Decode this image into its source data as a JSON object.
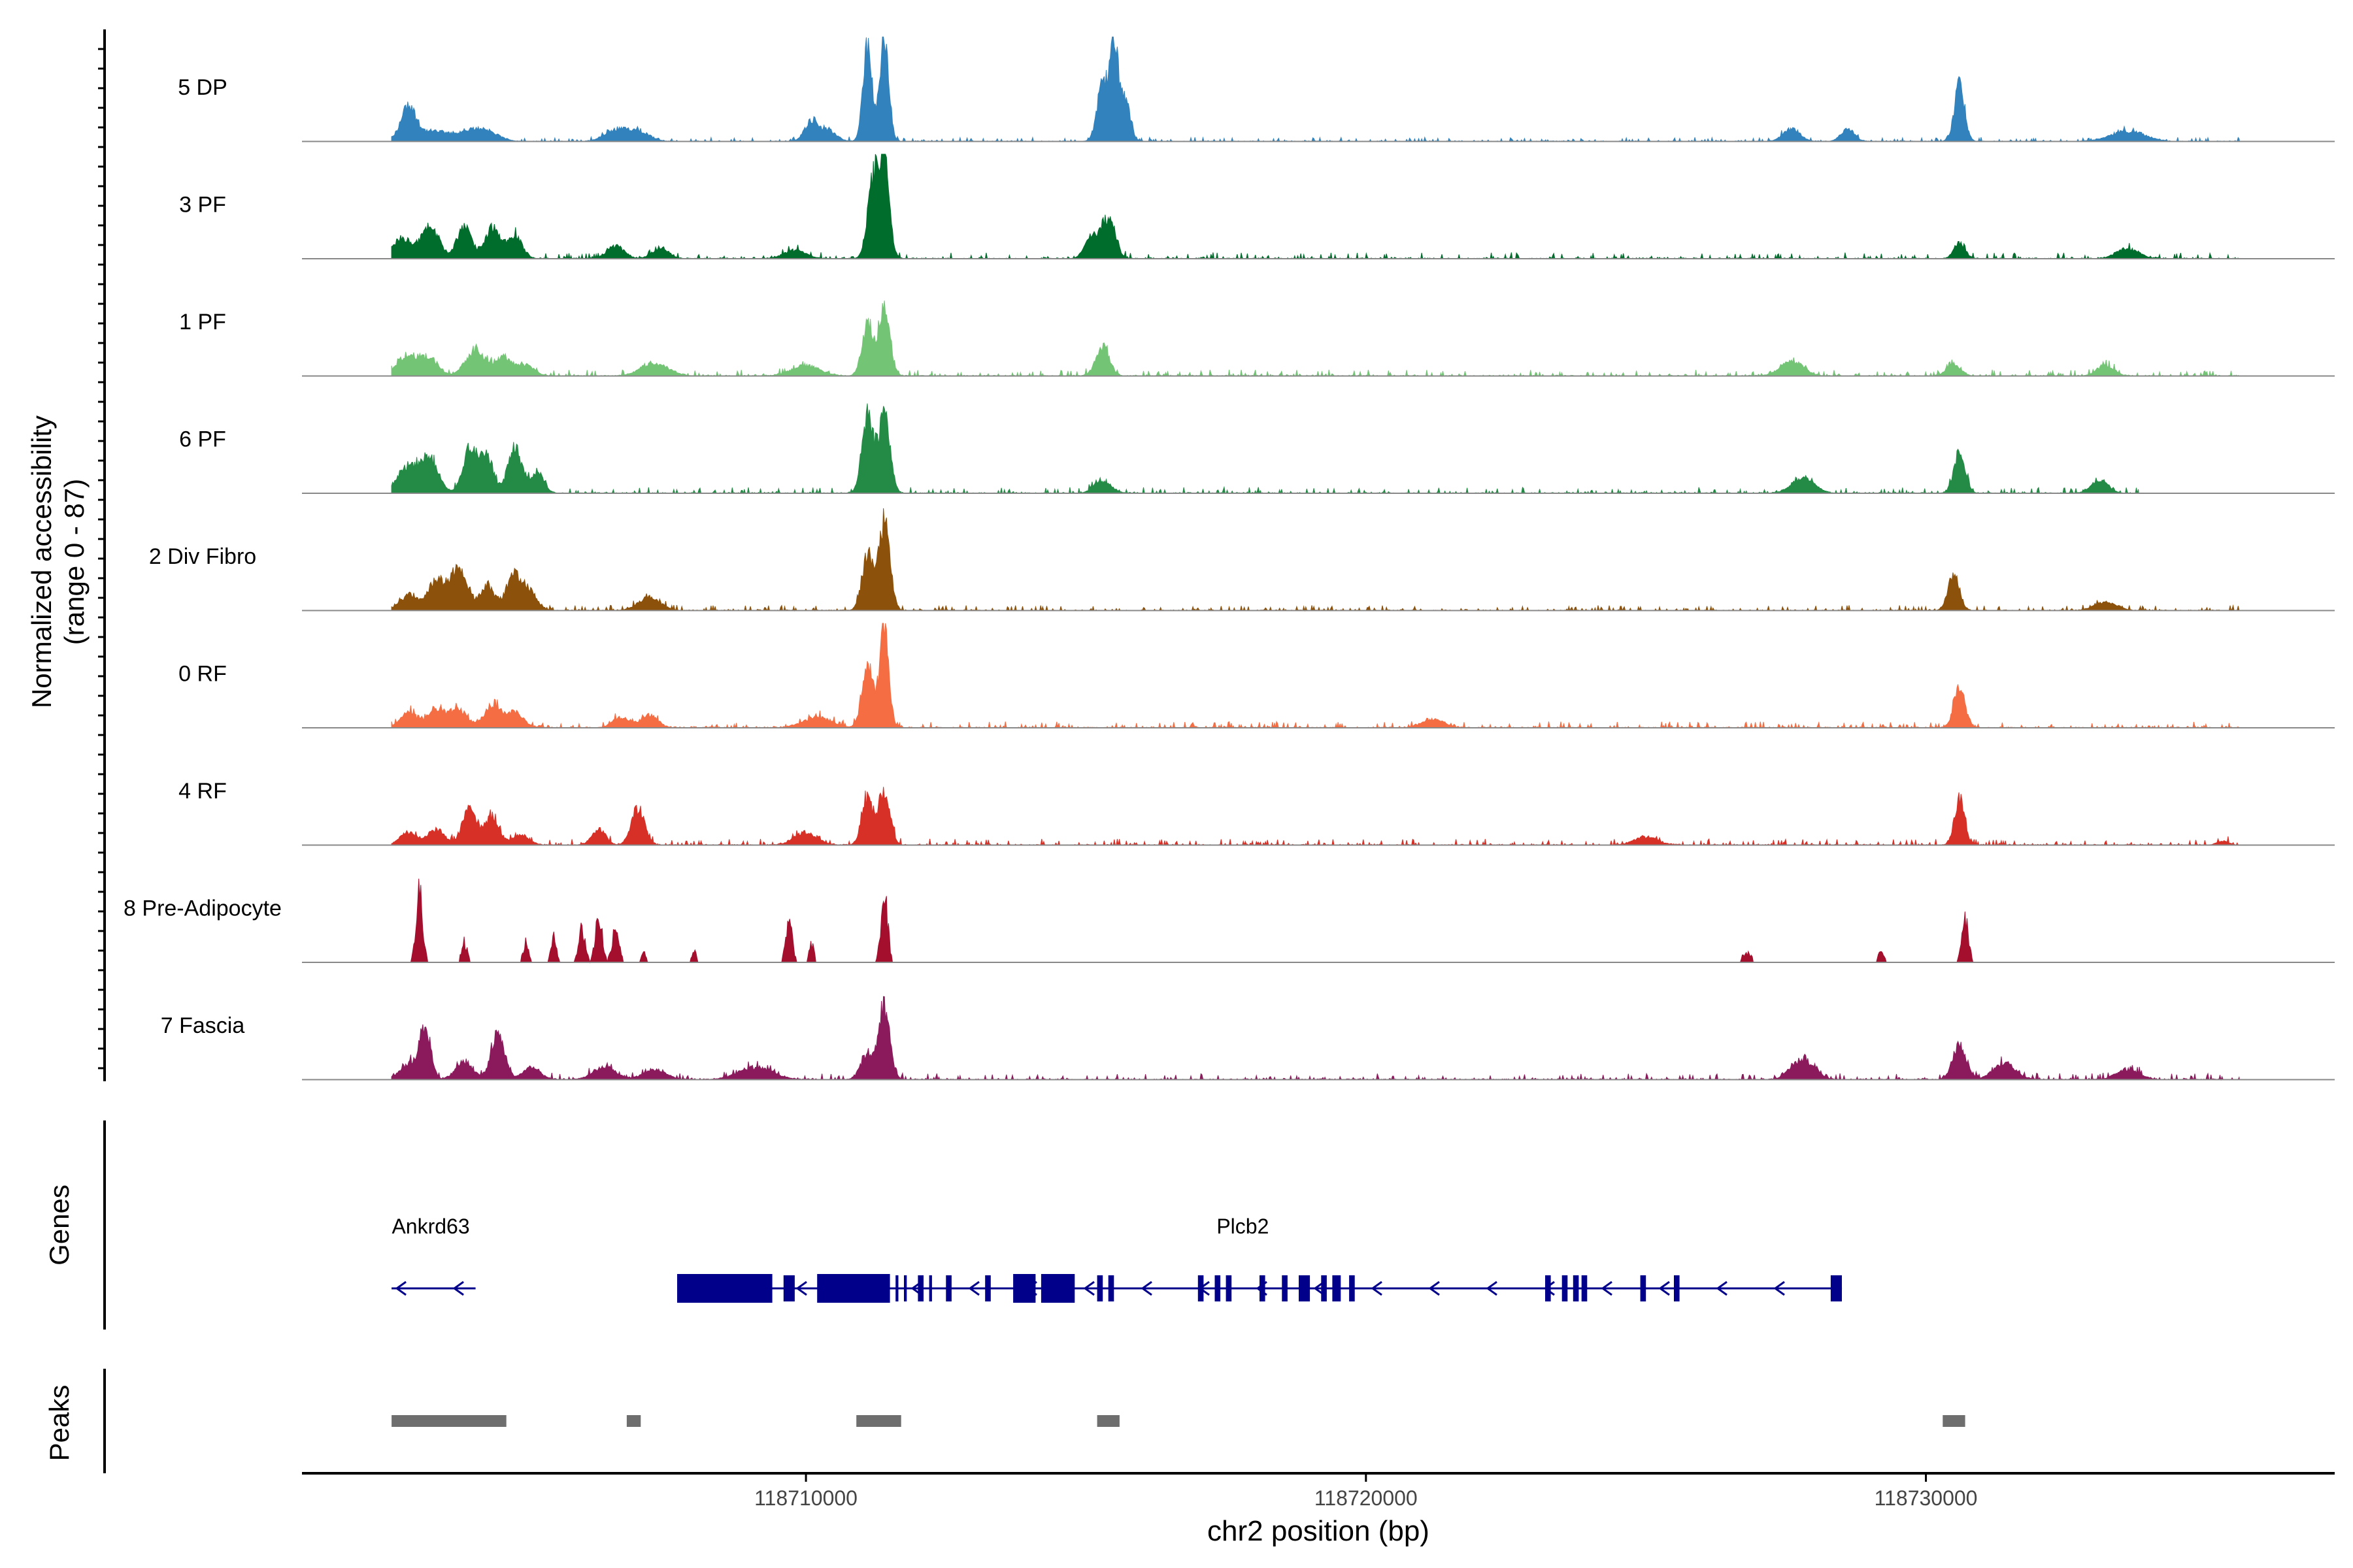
{
  "chart_data": {
    "type": "area",
    "title": "",
    "region": "chr2",
    "xlabel": "chr2 position (bp)",
    "ylabel": "Normalized accessibility",
    "ylabel_range": "(range 0 - 87)",
    "xlim": [
      118701000,
      118737300
    ],
    "ylim": [
      0,
      87
    ],
    "x_ticks": [
      118710000,
      118720000,
      118730000
    ],
    "x_tick_labels": [
      "118710000",
      "118720000",
      "118730000"
    ],
    "track_start": 118702600,
    "track_end": 118735600,
    "tracks": [
      {
        "name": "5 DP",
        "color": "#3182bd",
        "peaks": [
          [
            118702900,
            30,
            120
          ],
          [
            118703300,
            10,
            400
          ],
          [
            118704200,
            12,
            250
          ],
          [
            118706600,
            10,
            200
          ],
          [
            118707000,
            10,
            200
          ],
          [
            118710100,
            20,
            120
          ],
          [
            118710400,
            10,
            150
          ],
          [
            118711100,
            95,
            80
          ],
          [
            118711400,
            100,
            80
          ],
          [
            118715300,
            55,
            100
          ],
          [
            118715500,
            100,
            70
          ],
          [
            118715700,
            40,
            90
          ],
          [
            118727600,
            12,
            150
          ],
          [
            118728600,
            12,
            120
          ],
          [
            118730600,
            55,
            90
          ],
          [
            118733600,
            10,
            300
          ]
        ],
        "noise": 4,
        "sparse": false,
        "end": 118735600
      },
      {
        "name": "3 PF",
        "color": "#006d2c",
        "peaks": [
          [
            118702800,
            20,
            200
          ],
          [
            118703300,
            30,
            150
          ],
          [
            118703900,
            30,
            130
          ],
          [
            118704400,
            30,
            130
          ],
          [
            118704800,
            22,
            130
          ],
          [
            118706600,
            12,
            150
          ],
          [
            118707400,
            10,
            150
          ],
          [
            118709800,
            8,
            200
          ],
          [
            118711200,
            75,
            100
          ],
          [
            118711400,
            95,
            90
          ],
          [
            118715400,
            40,
            120
          ],
          [
            118715100,
            20,
            120
          ],
          [
            118730600,
            15,
            100
          ],
          [
            118733600,
            10,
            200
          ]
        ],
        "noise": 6,
        "sparse": false,
        "end": 118735600
      },
      {
        "name": "1 PF",
        "color": "#74c476",
        "peaks": [
          [
            118702900,
            20,
            200
          ],
          [
            118703300,
            15,
            150
          ],
          [
            118704100,
            25,
            180
          ],
          [
            118704600,
            18,
            150
          ],
          [
            118705000,
            10,
            150
          ],
          [
            118707300,
            12,
            250
          ],
          [
            118710000,
            10,
            250
          ],
          [
            118711100,
            50,
            100
          ],
          [
            118711400,
            65,
            100
          ],
          [
            118715300,
            28,
            120
          ],
          [
            118727600,
            15,
            200
          ],
          [
            118730500,
            12,
            120
          ],
          [
            118733200,
            10,
            150
          ]
        ],
        "noise": 6,
        "sparse": false,
        "end": 118735600
      },
      {
        "name": "6 PF",
        "color": "#238b45",
        "peaks": [
          [
            118702900,
            25,
            200
          ],
          [
            118703300,
            30,
            150
          ],
          [
            118704000,
            45,
            120
          ],
          [
            118704300,
            35,
            120
          ],
          [
            118704800,
            45,
            120
          ],
          [
            118705200,
            20,
            120
          ],
          [
            118711100,
            75,
            100
          ],
          [
            118711400,
            80,
            100
          ],
          [
            118715300,
            12,
            150
          ],
          [
            118727800,
            15,
            200
          ],
          [
            118730600,
            40,
            100
          ],
          [
            118733100,
            12,
            150
          ]
        ],
        "noise": 6,
        "sparse": false,
        "end": 118733800
      },
      {
        "name": "2 Div Fibro",
        "color": "#8c510a",
        "peaks": [
          [
            118702900,
            15,
            150
          ],
          [
            118703400,
            30,
            150
          ],
          [
            118703800,
            40,
            150
          ],
          [
            118704300,
            25,
            120
          ],
          [
            118704800,
            35,
            150
          ],
          [
            118705100,
            15,
            120
          ],
          [
            118707200,
            12,
            200
          ],
          [
            118711100,
            55,
            100
          ],
          [
            118711400,
            85,
            100
          ],
          [
            118730500,
            35,
            100
          ],
          [
            118733200,
            8,
            200
          ]
        ],
        "noise": 5,
        "sparse": false,
        "end": 118735600
      },
      {
        "name": "0 RF",
        "color": "#f46d43",
        "peaks": [
          [
            118702900,
            15,
            150
          ],
          [
            118703400,
            18,
            150
          ],
          [
            118703800,
            18,
            150
          ],
          [
            118704400,
            22,
            150
          ],
          [
            118704800,
            15,
            150
          ],
          [
            118706700,
            10,
            150
          ],
          [
            118707200,
            12,
            150
          ],
          [
            118710200,
            10,
            250
          ],
          [
            118711100,
            60,
            100
          ],
          [
            118711400,
            100,
            80
          ],
          [
            118721200,
            8,
            200
          ],
          [
            118730600,
            38,
            100
          ]
        ],
        "noise": 6,
        "sparse": false,
        "end": 118735600
      },
      {
        "name": "4 RF",
        "color": "#d73027",
        "peaks": [
          [
            118702900,
            12,
            150
          ],
          [
            118703400,
            15,
            150
          ],
          [
            118704000,
            35,
            130
          ],
          [
            118704400,
            28,
            120
          ],
          [
            118704900,
            10,
            150
          ],
          [
            118706300,
            15,
            120
          ],
          [
            118707000,
            35,
            120
          ],
          [
            118710000,
            12,
            200
          ],
          [
            118711100,
            45,
            100
          ],
          [
            118711400,
            55,
            100
          ],
          [
            118725000,
            8,
            200
          ],
          [
            118730600,
            45,
            90
          ],
          [
            118735300,
            4,
            100
          ]
        ],
        "noise": 6,
        "sparse": false,
        "end": 118735600
      },
      {
        "name": "8 Pre-Adipocyte",
        "color": "#a50f2e",
        "peaks": [
          [
            118703100,
            75,
            60
          ],
          [
            118703900,
            22,
            50
          ],
          [
            118705000,
            20,
            50
          ],
          [
            118705500,
            25,
            50
          ],
          [
            118706000,
            35,
            60
          ],
          [
            118706300,
            50,
            60
          ],
          [
            118706600,
            40,
            60
          ],
          [
            118707100,
            12,
            40
          ],
          [
            118708000,
            12,
            40
          ],
          [
            118709700,
            40,
            60
          ],
          [
            118710100,
            20,
            40
          ],
          [
            118711400,
            70,
            60
          ],
          [
            118726800,
            10,
            80
          ],
          [
            118729200,
            10,
            60
          ],
          [
            118730700,
            50,
            60
          ]
        ],
        "noise": 0,
        "sparse": true,
        "end": 118735600
      },
      {
        "name": "7 Fascia",
        "color": "#8b1a5c",
        "peaks": [
          [
            118702900,
            15,
            150
          ],
          [
            118703200,
            50,
            100
          ],
          [
            118703900,
            18,
            150
          ],
          [
            118704500,
            45,
            120
          ],
          [
            118705100,
            12,
            150
          ],
          [
            118706400,
            12,
            200
          ],
          [
            118707300,
            10,
            200
          ],
          [
            118709100,
            12,
            300
          ],
          [
            118711100,
            25,
            120
          ],
          [
            118711400,
            70,
            100
          ],
          [
            118727800,
            20,
            200
          ],
          [
            118730600,
            35,
            120
          ],
          [
            118731400,
            15,
            200
          ],
          [
            118733600,
            10,
            200
          ]
        ],
        "noise": 6,
        "sparse": false,
        "end": 118735600
      }
    ],
    "genes": [
      {
        "name": "Ankrd63",
        "strand": "-",
        "start": 118702600,
        "end": 118704100,
        "exons": [],
        "label_pos": 118703300
      },
      {
        "name": "Plcb2",
        "strand": "-",
        "start": 118707700,
        "end": 118728500,
        "exons": [
          [
            118707700,
            118709400
          ],
          [
            118709600,
            118709800
          ],
          [
            118710200,
            118711500
          ],
          [
            118711600,
            118711650
          ],
          [
            118711750,
            118711800
          ],
          [
            118712000,
            118712100
          ],
          [
            118712200,
            118712250
          ],
          [
            118712500,
            118712600
          ],
          [
            118713200,
            118713300
          ],
          [
            118713700,
            118714100
          ],
          [
            118714200,
            118714800
          ],
          [
            118715200,
            118715300
          ],
          [
            118715400,
            118715500
          ],
          [
            118717000,
            118717100
          ],
          [
            118717300,
            118717400
          ],
          [
            118717500,
            118717600
          ],
          [
            118718100,
            118718200
          ],
          [
            118718500,
            118718600
          ],
          [
            118718800,
            118719000
          ],
          [
            118719200,
            118719300
          ],
          [
            118719400,
            118719550
          ],
          [
            118719700,
            118719800
          ],
          [
            118723200,
            118723300
          ],
          [
            118723500,
            118723600
          ],
          [
            118723700,
            118723800
          ],
          [
            118723850,
            118723950
          ],
          [
            118724900,
            118725000
          ],
          [
            118725500,
            118725600
          ],
          [
            118728300,
            118728500
          ]
        ],
        "thick_exons": [
          [
            118707700,
            118709400
          ],
          [
            118710200,
            118711500
          ],
          [
            118713700,
            118714100
          ],
          [
            118714200,
            118714800
          ]
        ],
        "label_pos": 118717800
      }
    ],
    "peaks_track": [
      [
        118702600,
        118704650
      ],
      [
        118706800,
        118707050
      ],
      [
        118710900,
        118711700
      ],
      [
        118715200,
        118715600
      ],
      [
        118730300,
        118730700
      ]
    ],
    "panel_labels": {
      "genes": "Genes",
      "peaks": "Peaks"
    }
  }
}
